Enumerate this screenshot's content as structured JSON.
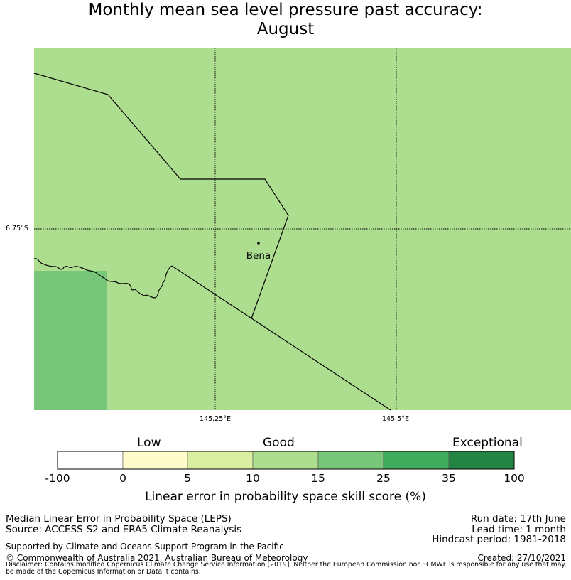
{
  "title": {
    "line1": "Monthly mean sea level pressure past accuracy:",
    "line2": "August"
  },
  "map": {
    "lon_ticks": [
      "145.25°E",
      "145.5°E"
    ],
    "lat_ticks": [
      "6.75°S"
    ],
    "place": "Bena"
  },
  "colorbar": {
    "categories": [
      "Low",
      "Good",
      "Exceptional"
    ],
    "ticks": [
      "-100",
      "0",
      "5",
      "10",
      "15",
      "25",
      "35",
      "100"
    ],
    "colors": [
      "#ffffff",
      "#fefccb",
      "#d9eea1",
      "#addd8e",
      "#78c679",
      "#41ab5d",
      "#238443"
    ],
    "label": "Linear error in probability space skill score (%)"
  },
  "footer": {
    "method": "Median Linear Error in Probability Space (LEPS)",
    "source": "Source: ACCESS-S2 and ERA5 Climate Reanalysis",
    "support": "Supported by Climate and Oceans Support Program in the Pacific",
    "copyright": "© Commonwealth of Australia 2021, Australian Bureau of Meteorology",
    "disclaimer": "Disclaimer: Contains modified Copernicus Climate Change Service Information [2019]. Neither the European Commission nor ECMWF is responsible for any use that may be made of the Copernicus Information or Data it contains.",
    "run_date": "Run date: 17th June",
    "lead_time": "Lead time: 1 month",
    "hindcast": "Hindcast period: 1981-2018",
    "created": "Created: 27/10/2021"
  }
}
